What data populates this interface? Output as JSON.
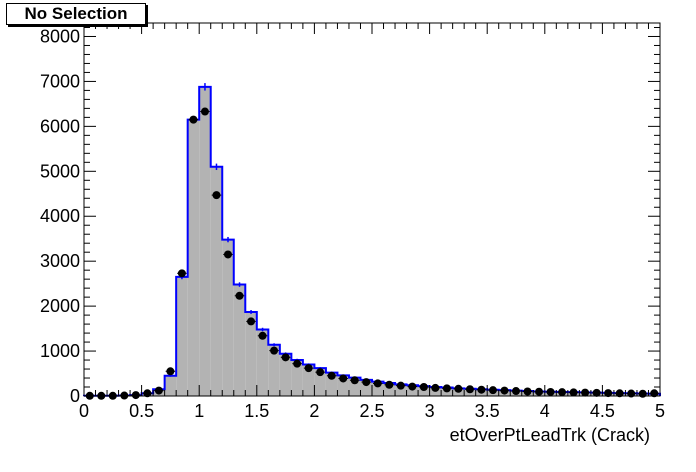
{
  "tag": "No Selection",
  "chart_data": {
    "type": "bar",
    "title": "",
    "xlabel": "etOverPtLeadTrk (Crack)",
    "ylabel": "",
    "xlim": [
      0,
      5
    ],
    "ylim": [
      0,
      8300
    ],
    "x_ticks": [
      "0",
      "0.5",
      "1",
      "1.5",
      "2",
      "2.5",
      "3",
      "3.5",
      "4",
      "4.5",
      "5"
    ],
    "y_ticks": [
      "0",
      "1000",
      "2000",
      "3000",
      "4000",
      "5000",
      "6000",
      "7000",
      "8000"
    ],
    "bin_edges": [
      0,
      0.1,
      0.2,
      0.3,
      0.4,
      0.5,
      0.6,
      0.7,
      0.8,
      0.9,
      1.0,
      1.1,
      1.2,
      1.3,
      1.4,
      1.5,
      1.6,
      1.7,
      1.8,
      1.9,
      2.0,
      2.1,
      2.2,
      2.3,
      2.4,
      2.5,
      2.6,
      2.7,
      2.8,
      2.9,
      3.0,
      3.1,
      3.2,
      3.3,
      3.4,
      3.5,
      3.6,
      3.7,
      3.8,
      3.9,
      4.0,
      4.1,
      4.2,
      4.3,
      4.4,
      4.5,
      4.6,
      4.7,
      4.8,
      4.9,
      5.0
    ],
    "series": [
      {
        "style": "filled-histogram",
        "fill": "#b3b3b3",
        "line": "#0000ff",
        "values": [
          5,
          5,
          5,
          10,
          20,
          60,
          150,
          450,
          2650,
          6150,
          6880,
          5100,
          3480,
          2480,
          1870,
          1480,
          1140,
          940,
          800,
          700,
          620,
          520,
          460,
          410,
          360,
          320,
          290,
          260,
          240,
          220,
          200,
          190,
          170,
          160,
          150,
          140,
          130,
          120,
          110,
          100,
          95,
          90,
          85,
          80,
          75,
          70,
          65,
          60,
          55,
          50
        ]
      },
      {
        "style": "markers",
        "marker": "#000000",
        "values": [
          5,
          5,
          5,
          10,
          20,
          60,
          120,
          550,
          2730,
          6150,
          6330,
          4470,
          3150,
          2230,
          1660,
          1340,
          1010,
          860,
          720,
          620,
          530,
          450,
          390,
          350,
          310,
          280,
          250,
          230,
          210,
          200,
          180,
          170,
          160,
          150,
          140,
          130,
          120,
          110,
          100,
          95,
          90,
          85,
          80,
          75,
          70,
          65,
          60,
          55,
          50,
          60
        ]
      }
    ]
  }
}
